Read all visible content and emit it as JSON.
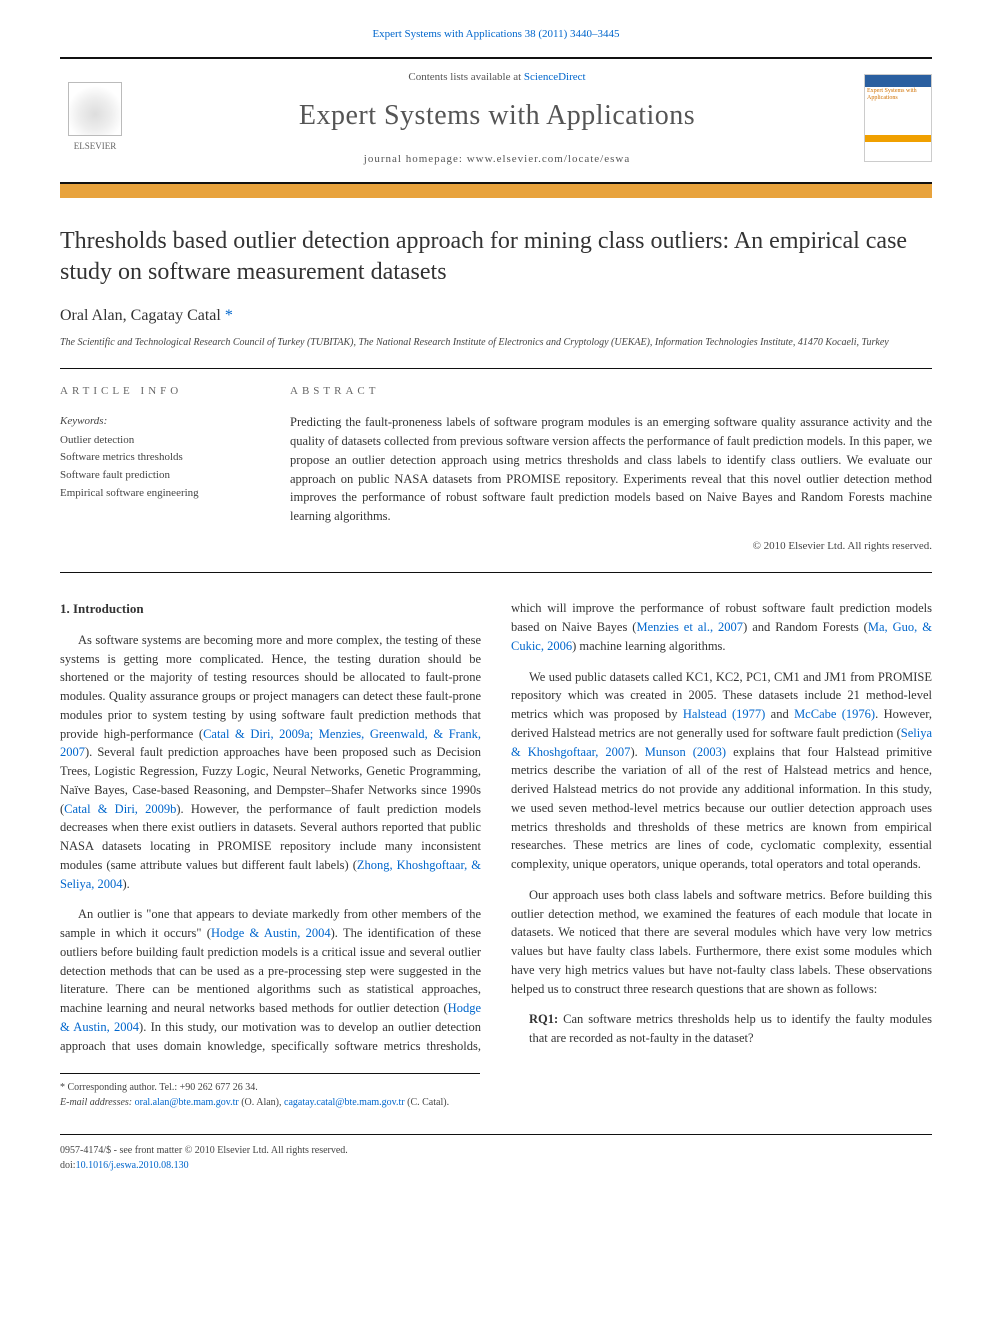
{
  "header": {
    "citation_line": "Expert Systems with Applications 38 (2011) 3440–3445",
    "citation_link_text": "Expert Systems with Applications"
  },
  "banner": {
    "elsevier_label": "ELSEVIER",
    "contents_prefix": "Contents lists available at ",
    "contents_link": "ScienceDirect",
    "journal_title": "Expert Systems with Applications",
    "homepage_prefix": "journal homepage: ",
    "homepage_url": "www.elsevier.com/locate/eswa",
    "cover_text": "Expert Systems with Applications"
  },
  "article": {
    "title": "Thresholds based outlier detection approach for mining class outliers: An empirical case study on software measurement datasets",
    "authors_prefix": "Oral Alan, Cagatay Catal",
    "corr_marker": "*",
    "affiliation": "The Scientific and Technological Research Council of Turkey (TUBITAK), The National Research Institute of Electronics and Cryptology (UEKAE), Information Technologies Institute, 41470 Kocaeli, Turkey"
  },
  "info": {
    "heading": "article info",
    "kw_label": "Keywords:",
    "keywords": [
      "Outlier detection",
      "Software metrics thresholds",
      "Software fault prediction",
      "Empirical software engineering"
    ]
  },
  "abstract": {
    "heading": "abstract",
    "text": "Predicting the fault-proneness labels of software program modules is an emerging software quality assurance activity and the quality of datasets collected from previous software version affects the performance of fault prediction models. In this paper, we propose an outlier detection approach using metrics thresholds and class labels to identify class outliers. We evaluate our approach on public NASA datasets from PROMISE repository. Experiments reveal that this novel outlier detection method improves the performance of robust software fault prediction models based on Naive Bayes and Random Forests machine learning algorithms.",
    "copyright": "© 2010 Elsevier Ltd. All rights reserved."
  },
  "body": {
    "section1_head": "1. Introduction",
    "p1a": "As software systems are becoming more and more complex, the testing of these systems is getting more complicated. Hence, the testing duration should be shortened or the majority of testing resources should be allocated to fault-prone modules. Quality assurance groups or project managers can detect these fault-prone modules prior to system testing by using software fault prediction methods that provide high-performance (",
    "p1_link1": "Catal & Diri, 2009a; Menzies, Greenwald, & Frank, 2007",
    "p1b": "). Several fault prediction approaches have been proposed such as Decision Trees, Logistic Regression, Fuzzy Logic, Neural Networks, Genetic Programming, Naïve Bayes, Case-based Reasoning, and Dempster–Shafer Networks since 1990s (",
    "p1_link2": "Catal & Diri, 2009b",
    "p1c": "). However, the performance of fault prediction models decreases when there exist outliers in datasets. Several authors reported that public NASA datasets locating in PROMISE repository include many inconsistent modules (same attribute values but different fault labels) (",
    "p1_link3": "Zhong, Khoshgoftaar, & Seliya, 2004",
    "p1d": ").",
    "p2a": "An outlier is \"one that appears to deviate markedly from other members of the sample in which it occurs\" (",
    "p2_link1": "Hodge & Austin, 2004",
    "p2b": "). The identification of these outliers before building fault prediction models is a critical issue and several outlier detection methods that can be used as a pre-processing step were suggested in the literature. There can be mentioned algorithms such as statistical approaches, machine learning and neural networks based methods for outlier detection (",
    "p2_link2": "Hodge & Austin, 2004",
    "p2c": "). In this study, our motivation was to develop an outlier detection approach that uses domain knowledge, specifically software metrics thresholds, which will improve the performance of robust software fault prediction models based on Naive Bayes (",
    "p2_link3": "Menzies et al., 2007",
    "p2d": ") and Random Forests (",
    "p2_link4": "Ma, Guo, & Cukic, 2006",
    "p2e": ") machine learning algorithms.",
    "p3a": "We used public datasets called KC1, KC2, PC1, CM1 and JM1 from PROMISE repository which was created in 2005. These datasets include 21 method-level metrics which was proposed by ",
    "p3_link1": "Halstead (1977)",
    "p3b": " and ",
    "p3_link2": "McCabe (1976)",
    "p3c": ". However, derived Halstead metrics are not generally used for software fault prediction (",
    "p3_link3": "Seliya & Khoshgoftaar, 2007",
    "p3d": "). ",
    "p3_link4": "Munson (2003)",
    "p3e": " explains that four Halstead primitive metrics describe the variation of all of the rest of Halstead metrics and hence, derived Halstead metrics do not provide any additional information. In this study, we used seven method-level metrics because our outlier detection approach uses metrics thresholds and thresholds of these metrics are known from empirical researches. These metrics are lines of code, cyclomatic complexity, essential complexity, unique operators, unique operands, total operators and total operands.",
    "p4": "Our approach uses both class labels and software metrics. Before building this outlier detection method, we examined the features of each module that locate in datasets. We noticed that there are several modules which have very low metrics values but have faulty class labels. Furthermore, there exist some modules which have very high metrics values but have not-faulty class labels. These observations helped us to construct three research questions that are shown as follows:",
    "rq1_label": "RQ1:",
    "rq1_text": " Can software metrics thresholds help us to identify the faulty modules that are recorded as not-faulty in the dataset?"
  },
  "footnotes": {
    "corr_line": "* Corresponding author. Tel.: +90 262 677 26 34.",
    "email_label": "E-mail addresses: ",
    "email1": "oral.alan@bte.mam.gov.tr",
    "email1_who": " (O. Alan), ",
    "email2": "cagatay.catal@bte.mam.gov.tr",
    "email2_who": " (C. Catal)."
  },
  "footer": {
    "issn_line": "0957-4174/$ - see front matter © 2010 Elsevier Ltd. All rights reserved.",
    "doi_label": "doi:",
    "doi": "10.1016/j.eswa.2010.08.130"
  },
  "colors": {
    "link": "#0066cc",
    "orange_bar": "#e8a33d",
    "text": "#333333",
    "muted": "#555555"
  }
}
